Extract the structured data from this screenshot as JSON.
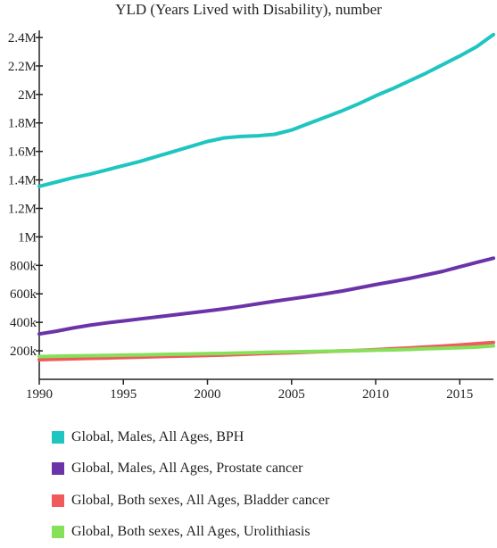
{
  "chart_data": {
    "type": "line",
    "title": "YLD (Years Lived with Disability), number",
    "xlabel": "",
    "ylabel": "",
    "xlim": [
      1990,
      2017
    ],
    "ylim": [
      0,
      2450000
    ],
    "x_ticks": [
      1990,
      1995,
      2000,
      2005,
      2010,
      2015
    ],
    "x_tick_labels": [
      "1990",
      "1995",
      "2000",
      "2005",
      "2010",
      "2015"
    ],
    "y_ticks": [
      200000,
      400000,
      600000,
      800000,
      1000000,
      1200000,
      1400000,
      1600000,
      1800000,
      2000000,
      2200000,
      2400000
    ],
    "y_tick_labels": [
      "200k",
      "400k",
      "600k",
      "800k",
      "1M",
      "1.2M",
      "1.4M",
      "1.6M",
      "1.8M",
      "2M",
      "2.2M",
      "2.4M"
    ],
    "grid": false,
    "legend_position": "bottom",
    "x": [
      1990,
      1991,
      1992,
      1993,
      1994,
      1995,
      1996,
      1997,
      1998,
      1999,
      2000,
      2001,
      2002,
      2003,
      2004,
      2005,
      2006,
      2007,
      2008,
      2009,
      2010,
      2011,
      2012,
      2013,
      2014,
      2015,
      2016,
      2017
    ],
    "series": [
      {
        "name": "Global, Males, All Ages, BPH",
        "color": "#1fc5c0",
        "values": [
          1355000,
          1385000,
          1415000,
          1440000,
          1470000,
          1500000,
          1530000,
          1565000,
          1600000,
          1635000,
          1670000,
          1695000,
          1705000,
          1710000,
          1720000,
          1750000,
          1795000,
          1840000,
          1885000,
          1935000,
          1990000,
          2040000,
          2095000,
          2150000,
          2210000,
          2270000,
          2335000,
          2420000
        ]
      },
      {
        "name": "Global, Males, All Ages, Prostate cancer",
        "color": "#6a34a8",
        "values": [
          318000,
          338000,
          360000,
          380000,
          396000,
          410000,
          424000,
          438000,
          452000,
          466000,
          480000,
          495000,
          512000,
          530000,
          548000,
          565000,
          582000,
          600000,
          620000,
          642000,
          665000,
          686000,
          708000,
          733000,
          758000,
          790000,
          820000,
          850000
        ]
      },
      {
        "name": "Global, Both sexes, All Ages, Bladder cancer",
        "color": "#f05a5a",
        "values": [
          138000,
          141000,
          144000,
          147000,
          150000,
          153000,
          156000,
          159000,
          162000,
          165000,
          168000,
          171000,
          175000,
          179000,
          183000,
          187000,
          191000,
          195000,
          199000,
          203000,
          208000,
          214000,
          220000,
          227000,
          234000,
          241000,
          250000,
          258000
        ]
      },
      {
        "name": "Global, Both sexes, All Ages, Urolithiasis",
        "color": "#86e05a",
        "values": [
          160000,
          162000,
          164000,
          166000,
          168000,
          170000,
          172000,
          174000,
          176000,
          178000,
          180000,
          182000,
          185000,
          188000,
          191000,
          193000,
          195000,
          197000,
          199000,
          201000,
          204000,
          207000,
          210000,
          214000,
          218000,
          222000,
          226000,
          235000
        ]
      }
    ]
  }
}
